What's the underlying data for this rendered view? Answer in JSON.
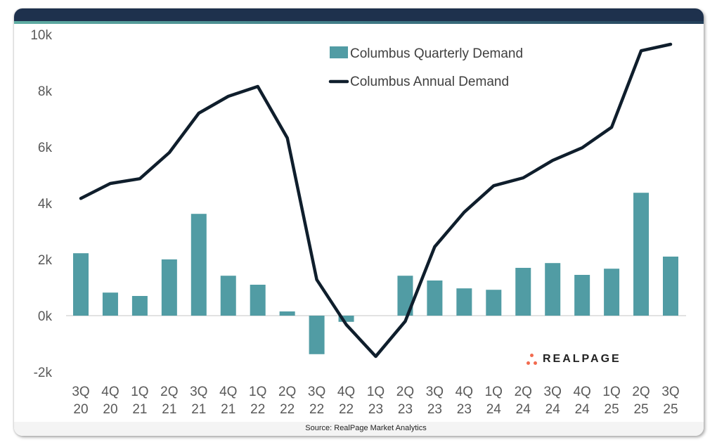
{
  "chart_data": {
    "type": "bar+line",
    "title": "",
    "xlabel": "",
    "ylabel": "",
    "categories": [
      [
        "3Q",
        "20"
      ],
      [
        "4Q",
        "20"
      ],
      [
        "1Q",
        "21"
      ],
      [
        "2Q",
        "21"
      ],
      [
        "3Q",
        "21"
      ],
      [
        "4Q",
        "21"
      ],
      [
        "1Q",
        "22"
      ],
      [
        "2Q",
        "22"
      ],
      [
        "3Q",
        "22"
      ],
      [
        "4Q",
        "22"
      ],
      [
        "1Q",
        "23"
      ],
      [
        "2Q",
        "23"
      ],
      [
        "3Q",
        "23"
      ],
      [
        "4Q",
        "23"
      ],
      [
        "1Q",
        "24"
      ],
      [
        "2Q",
        "24"
      ],
      [
        "3Q",
        "24"
      ],
      [
        "4Q",
        "24"
      ],
      [
        "1Q",
        "25"
      ],
      [
        "2Q",
        "25"
      ],
      [
        "3Q",
        "25"
      ]
    ],
    "series": [
      {
        "name": "Columbus Quarterly Demand",
        "type": "bar",
        "color": "#519ca4",
        "values": [
          2220,
          820,
          700,
          2000,
          3620,
          1420,
          1100,
          150,
          -1370,
          -220,
          0,
          1420,
          1250,
          970,
          920,
          1700,
          1870,
          1450,
          1670,
          4370,
          2100
        ]
      },
      {
        "name": "Columbus Annual Demand",
        "type": "line",
        "color": "#0f1e2c",
        "values": [
          4170,
          4700,
          4870,
          5800,
          7200,
          7800,
          8150,
          6320,
          1280,
          -320,
          -1450,
          -200,
          2450,
          3680,
          4620,
          4900,
          5520,
          5970,
          6700,
          9420,
          9650
        ]
      }
    ],
    "ylim": [
      -2000,
      10000
    ],
    "yticks": [
      10000,
      8000,
      6000,
      4000,
      2000,
      0,
      -2000
    ],
    "ytick_labels": [
      "10k",
      "8k",
      "6k",
      "4k",
      "2k",
      "0k",
      "-2k"
    ],
    "grid": false,
    "legend_position": "top-center"
  },
  "source_text": "Source: RealPage Market Analytics",
  "logo_text": "REALPAGE"
}
